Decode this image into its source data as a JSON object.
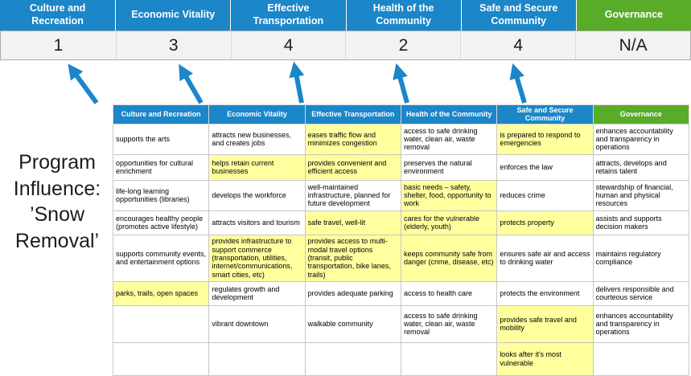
{
  "title": {
    "text": "Program Influence: ’Snow Removal’"
  },
  "colors": {
    "header_blue": "#1B86C8",
    "header_green": "#58AC27",
    "highlight_yellow": "#FFFF9E",
    "score_row_bg": "#F2F2F2",
    "arrow_blue": "#1B86C8"
  },
  "scoreboard": [
    {
      "label": "Culture and Recreation",
      "score": "1",
      "theme": "blue"
    },
    {
      "label": "Economic Vitality",
      "score": "3",
      "theme": "blue"
    },
    {
      "label": "Effective Transportation",
      "score": "4",
      "theme": "blue"
    },
    {
      "label": "Health of the Community",
      "score": "2",
      "theme": "blue"
    },
    {
      "label": "Safe and Secure Community",
      "score": "4",
      "theme": "blue"
    },
    {
      "label": "Governance",
      "score": "N/A",
      "theme": "green"
    }
  ],
  "matrix": {
    "headers": [
      {
        "label": "Culture and Recreation",
        "theme": "blue"
      },
      {
        "label": "Economic Vitality",
        "theme": "blue"
      },
      {
        "label": "Effective Transportation",
        "theme": "blue"
      },
      {
        "label": "Health of the Community",
        "theme": "blue"
      },
      {
        "label": "Safe and Secure Community",
        "theme": "blue"
      },
      {
        "label": "Governance",
        "theme": "green"
      }
    ],
    "rows": [
      [
        {
          "text": "supports the arts",
          "highlight": false
        },
        {
          "text": "attracts new businesses, and creates jobs",
          "highlight": false
        },
        {
          "text": "eases traffic flow and minimizes congestion",
          "highlight": true
        },
        {
          "text": "access to safe drinking water, clean air, waste removal",
          "highlight": false
        },
        {
          "text": "is prepared to respond to emergencies",
          "highlight": true
        },
        {
          "text": "enhances accountability and transparency in operations",
          "highlight": false
        }
      ],
      [
        {
          "text": "opportunities for cultural enrichment",
          "highlight": false
        },
        {
          "text": "helps retain current businesses",
          "highlight": true
        },
        {
          "text": "provides convenient and efficient access",
          "highlight": true
        },
        {
          "text": "preserves the natural environment",
          "highlight": false
        },
        {
          "text": "enforces the law",
          "highlight": false
        },
        {
          "text": "attracts, develops and retains talent",
          "highlight": false
        }
      ],
      [
        {
          "text": "life-long learning opportunities (libraries)",
          "highlight": false
        },
        {
          "text": "develops the workforce",
          "highlight": false
        },
        {
          "text": "well-maintained infrastructure, planned for future development",
          "highlight": false
        },
        {
          "text": "basic needs – safety, shelter, food, opportunity to work",
          "highlight": true
        },
        {
          "text": "reduces crime",
          "highlight": false
        },
        {
          "text": "stewardship of financial, human and physical resources",
          "highlight": false
        }
      ],
      [
        {
          "text": "encourages healthy people (promotes active lifestyle)",
          "highlight": false
        },
        {
          "text": "attracts visitors and tourism",
          "highlight": false
        },
        {
          "text": "safe travel, well-lit",
          "highlight": true
        },
        {
          "text": "cares for the vulnerable (elderly, youth)",
          "highlight": true
        },
        {
          "text": "protects property",
          "highlight": true
        },
        {
          "text": "assists and supports decision makers",
          "highlight": false
        }
      ],
      [
        {
          "text": "supports community events, and entertainment options",
          "highlight": false
        },
        {
          "text": "provides infrastructure to support commerce (transportation, utilities, internet/communications, smart cities, etc)",
          "highlight": true
        },
        {
          "text": "provides access to multi-modal travel options (transit, public transportation, bike lanes, trails)",
          "highlight": true
        },
        {
          "text": "keeps community safe from danger (crime, disease, etc)",
          "highlight": true
        },
        {
          "text": "ensures safe air and access to drinking water",
          "highlight": false
        },
        {
          "text": "maintains regulatory compliance",
          "highlight": false
        }
      ],
      [
        {
          "text": "parks, trails, open spaces",
          "highlight": true
        },
        {
          "text": "regulates growth and development",
          "highlight": false
        },
        {
          "text": "provides adequate parking",
          "highlight": false
        },
        {
          "text": "access to health care",
          "highlight": false
        },
        {
          "text": "protects the environment",
          "highlight": false
        },
        {
          "text": "delivers responsible and courteous service",
          "highlight": false
        }
      ],
      [
        {
          "text": "",
          "highlight": false
        },
        {
          "text": "vibrant downtown",
          "highlight": false
        },
        {
          "text": "walkable community",
          "highlight": false
        },
        {
          "text": "access to safe drinking water, clean air, waste removal",
          "highlight": false
        },
        {
          "text": "provides safe travel and mobility",
          "highlight": true
        },
        {
          "text": "enhances accountability and transparency in operations",
          "highlight": false
        }
      ],
      [
        {
          "text": "",
          "highlight": false
        },
        {
          "text": "",
          "highlight": false
        },
        {
          "text": "",
          "highlight": false
        },
        {
          "text": "",
          "highlight": false
        },
        {
          "text": "looks after it's most vulnerable",
          "highlight": true
        },
        {
          "text": "",
          "highlight": false
        }
      ]
    ]
  }
}
